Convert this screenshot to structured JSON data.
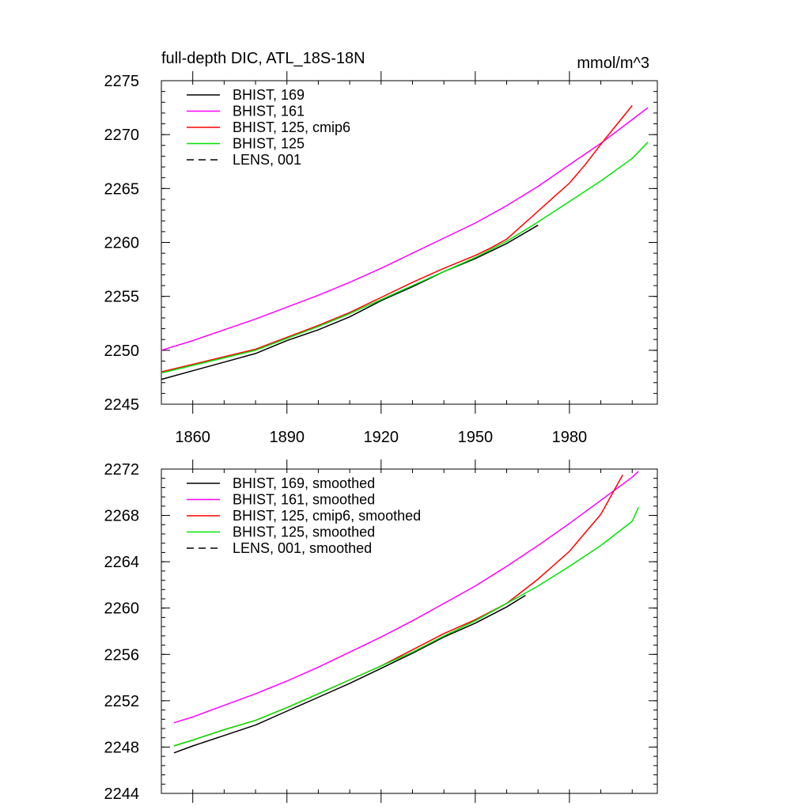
{
  "chart_data": [
    {
      "type": "line",
      "title": "full-depth DIC, ATL_18S-18N",
      "units_label": "mmol/m^3",
      "xlabel": "",
      "ylabel": "",
      "xlim": [
        1850,
        2008
      ],
      "ylim": [
        2245,
        2275
      ],
      "x_ticks": [
        1860,
        1890,
        1920,
        1950,
        1980
      ],
      "y_ticks": [
        2245,
        2250,
        2255,
        2260,
        2265,
        2270,
        2275
      ],
      "show_x_tick_labels": true,
      "legend_placement": "top-left",
      "series": [
        {
          "name": "BHIST, 169",
          "color": "#000000",
          "dash": "solid",
          "x": [
            1850,
            1860,
            1870,
            1880,
            1890,
            1900,
            1910,
            1920,
            1930,
            1940,
            1950,
            1960,
            1970
          ],
          "y": [
            2247.3,
            2248.1,
            2248.9,
            2249.7,
            2250.9,
            2251.9,
            2253.1,
            2254.6,
            2255.9,
            2257.3,
            2258.5,
            2259.9,
            2261.6
          ]
        },
        {
          "name": "BHIST, 161",
          "color": "#ff00ff",
          "dash": "solid",
          "x": [
            1850,
            1860,
            1870,
            1880,
            1890,
            1900,
            1910,
            1920,
            1930,
            1940,
            1950,
            1960,
            1970,
            1980,
            1990,
            2000,
            2005
          ],
          "y": [
            2250.0,
            2250.9,
            2251.9,
            2252.9,
            2254.0,
            2255.1,
            2256.3,
            2257.6,
            2259.0,
            2260.4,
            2261.8,
            2263.4,
            2265.2,
            2267.2,
            2269.2,
            2271.4,
            2272.5
          ]
        },
        {
          "name": "BHIST, 125, cmip6",
          "color": "#ff0000",
          "dash": "solid",
          "x": [
            1850,
            1860,
            1870,
            1880,
            1890,
            1900,
            1910,
            1920,
            1930,
            1940,
            1950,
            1955,
            1960,
            1965,
            1970,
            1975,
            1980,
            1985,
            1990,
            1995,
            2000
          ],
          "y": [
            2248.0,
            2248.7,
            2249.4,
            2250.1,
            2251.2,
            2252.3,
            2253.5,
            2254.9,
            2256.3,
            2257.6,
            2258.8,
            2259.5,
            2260.3,
            2261.6,
            2262.9,
            2264.2,
            2265.5,
            2267.2,
            2269.1,
            2270.9,
            2272.7
          ]
        },
        {
          "name": "BHIST, 125",
          "color": "#00e600",
          "dash": "solid",
          "x": [
            1850,
            1860,
            1870,
            1880,
            1890,
            1900,
            1910,
            1920,
            1930,
            1940,
            1950,
            1960,
            1970,
            1980,
            1990,
            2000,
            2005
          ],
          "y": [
            2247.9,
            2248.6,
            2249.3,
            2250.0,
            2251.1,
            2252.2,
            2253.4,
            2254.7,
            2256.0,
            2257.3,
            2258.6,
            2260.1,
            2261.9,
            2263.8,
            2265.7,
            2267.8,
            2269.3
          ]
        },
        {
          "name": "LENS, 001",
          "color": "#000000",
          "dash": "dashed",
          "x": [],
          "y": []
        }
      ]
    },
    {
      "type": "line",
      "title": "",
      "units_label": "",
      "xlabel": "",
      "ylabel": "",
      "xlim": [
        1850,
        2008
      ],
      "ylim": [
        2244,
        2272
      ],
      "x_ticks": [
        1860,
        1890,
        1920,
        1950,
        1980
      ],
      "y_ticks": [
        2244,
        2248,
        2252,
        2256,
        2260,
        2264,
        2268,
        2272
      ],
      "show_x_tick_labels": false,
      "legend_placement": "top-left",
      "series": [
        {
          "name": "BHIST, 169, smoothed",
          "color": "#000000",
          "dash": "solid",
          "x": [
            1854,
            1860,
            1870,
            1880,
            1890,
            1900,
            1910,
            1920,
            1930,
            1940,
            1950,
            1960,
            1966
          ],
          "y": [
            2247.5,
            2248.1,
            2249.0,
            2249.9,
            2251.1,
            2252.3,
            2253.5,
            2254.8,
            2256.1,
            2257.5,
            2258.7,
            2260.1,
            2261.1
          ]
        },
        {
          "name": "BHIST, 161, smoothed",
          "color": "#ff00ff",
          "dash": "solid",
          "x": [
            1854,
            1860,
            1870,
            1880,
            1890,
            1900,
            1910,
            1920,
            1930,
            1940,
            1950,
            1960,
            1970,
            1980,
            1990,
            2000,
            2002
          ],
          "y": [
            2250.1,
            2250.6,
            2251.6,
            2252.6,
            2253.7,
            2254.9,
            2256.2,
            2257.5,
            2258.9,
            2260.4,
            2261.9,
            2263.6,
            2265.4,
            2267.3,
            2269.3,
            2271.3,
            2271.8
          ]
        },
        {
          "name": "BHIST, 125, cmip6, smoothed",
          "color": "#ff0000",
          "dash": "solid",
          "x": [
            1854,
            1860,
            1870,
            1880,
            1890,
            1900,
            1910,
            1920,
            1930,
            1940,
            1950,
            1960,
            1970,
            1980,
            1990,
            1997
          ],
          "y": [
            2248.1,
            2248.6,
            2249.5,
            2250.3,
            2251.4,
            2252.6,
            2253.8,
            2255.0,
            2256.4,
            2257.8,
            2259.0,
            2260.4,
            2262.5,
            2264.9,
            2268.1,
            2271.5
          ]
        },
        {
          "name": "BHIST, 125, smoothed",
          "color": "#00e600",
          "dash": "solid",
          "x": [
            1854,
            1860,
            1870,
            1880,
            1890,
            1900,
            1910,
            1920,
            1930,
            1940,
            1950,
            1960,
            1970,
            1980,
            1990,
            2000,
            2002
          ],
          "y": [
            2248.1,
            2248.6,
            2249.5,
            2250.3,
            2251.4,
            2252.6,
            2253.8,
            2255.0,
            2256.2,
            2257.6,
            2258.9,
            2260.4,
            2261.9,
            2263.6,
            2265.4,
            2267.5,
            2268.7
          ]
        },
        {
          "name": "LENS, 001, smoothed",
          "color": "#000000",
          "dash": "dashed",
          "x": [],
          "y": []
        }
      ]
    }
  ]
}
